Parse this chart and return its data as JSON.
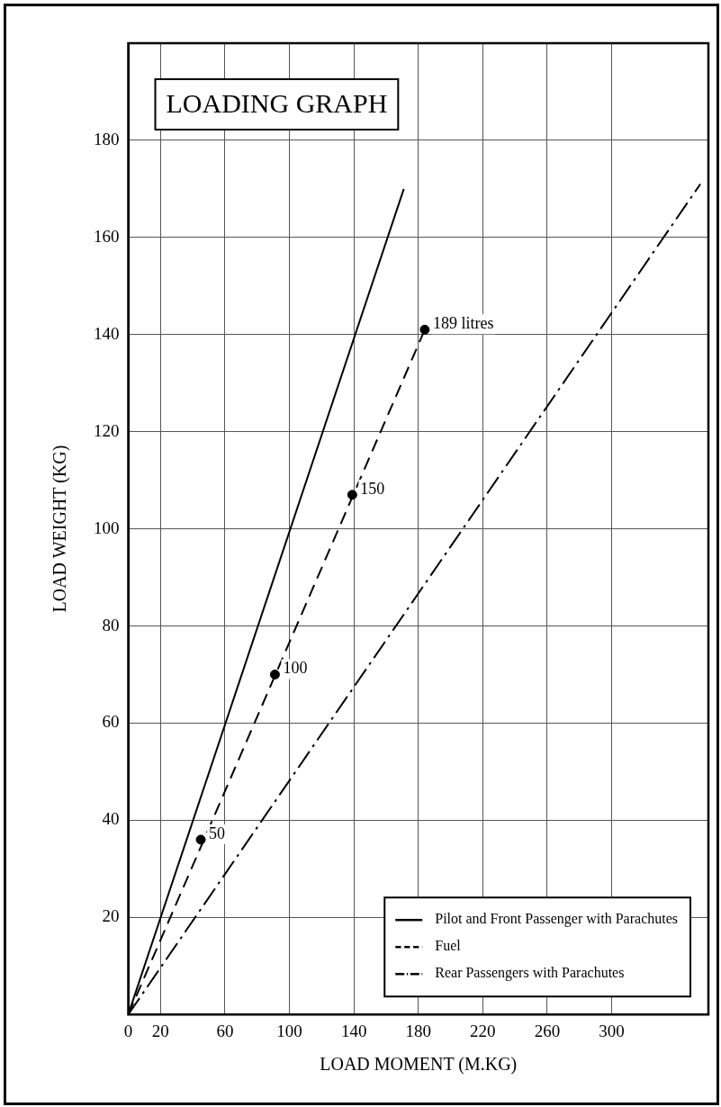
{
  "chart_data": {
    "type": "line",
    "title": "LOADING GRAPH",
    "xlabel": "LOAD MOMENT (M.KG)",
    "ylabel": "LOAD WEIGHT (KG)",
    "xlim": [
      0,
      360
    ],
    "xticks": [
      0,
      20,
      60,
      100,
      140,
      180,
      220,
      260,
      300
    ],
    "ylim": [
      0,
      200
    ],
    "yticks": [
      20,
      40,
      60,
      80,
      100,
      120,
      140,
      160,
      180
    ],
    "grid": true,
    "legend": "bottom right",
    "series": [
      {
        "name": "Pilot and Front Passenger with Parachutes",
        "color": "#000000",
        "line_style": "solid",
        "marker": "none",
        "x": [
          0,
          171
        ],
        "values": [
          0,
          170
        ]
      },
      {
        "name": "Fuel",
        "color": "#000000",
        "line_style": "dashed",
        "marker": "none",
        "x": [
          0,
          184
        ],
        "values": [
          0,
          141
        ]
      },
      {
        "name": "Rear Passengers with Parachutes",
        "color": "#000000",
        "line_style": "dashdot",
        "marker": "none",
        "x": [
          0,
          355
        ],
        "values": [
          0,
          171
        ]
      },
      {
        "type": "scatter",
        "color": "#000000",
        "marker": "circle",
        "x": [
          45,
          91,
          139,
          184
        ],
        "values": [
          36,
          70,
          107,
          141
        ]
      }
    ],
    "annotations": [
      {
        "text": "50",
        "x": 45,
        "y": 36
      },
      {
        "text": "100",
        "x": 91,
        "y": 70
      },
      {
        "text": "150",
        "x": 139,
        "y": 107
      },
      {
        "text": "189 litres",
        "x": 184,
        "y": 141
      }
    ]
  }
}
